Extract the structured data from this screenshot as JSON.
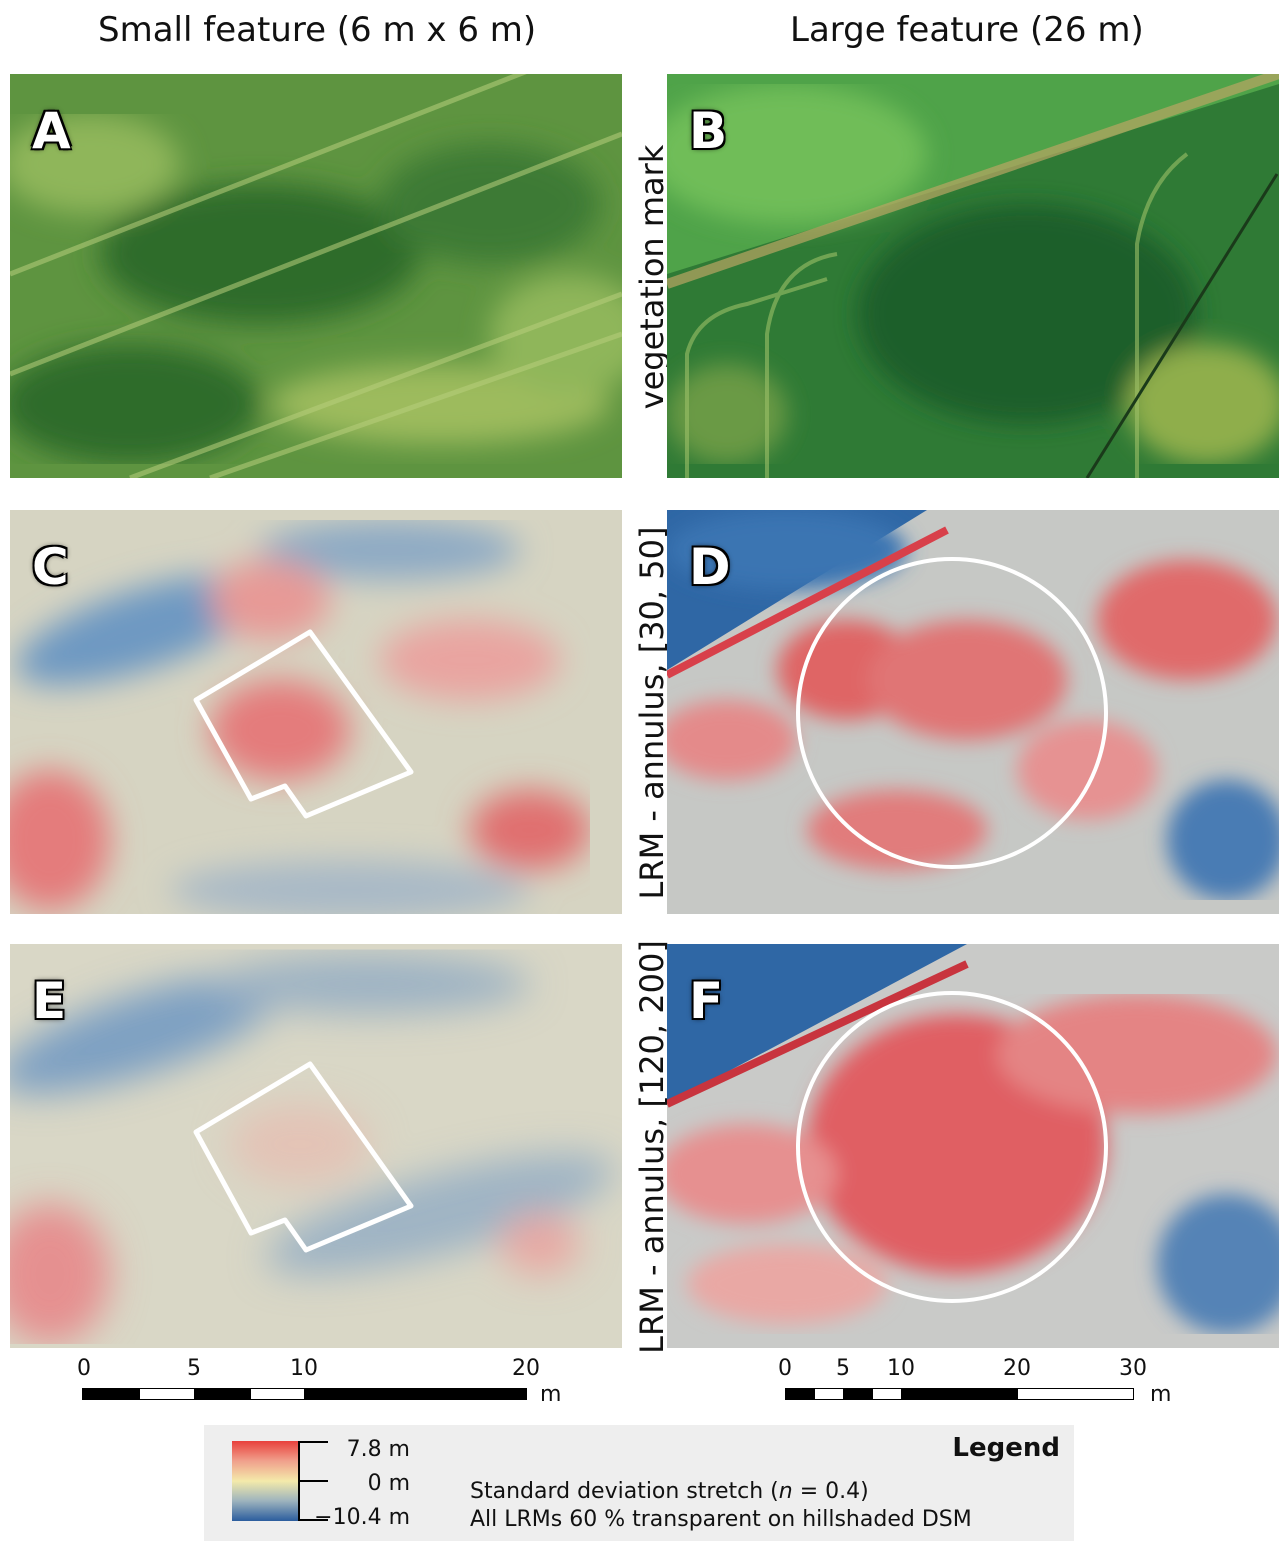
{
  "columns": {
    "left_title": "Small feature (6 m x 6 m)",
    "right_title": "Large feature (26 m)"
  },
  "row_labels": {
    "row1": "vegetation mark",
    "row2": "LRM - annulus, [30, 50]",
    "row3": "LRM - annulus, [120, 200]"
  },
  "panels": [
    {
      "letter": "A",
      "type": "vegetation",
      "colors": [
        "#4f8a36",
        "#79a94b",
        "#2f6c2c"
      ]
    },
    {
      "letter": "B",
      "type": "vegetation",
      "colors": [
        "#2f7a35",
        "#5fa24c",
        "#1f5e2c"
      ]
    },
    {
      "letter": "C",
      "type": "lrm",
      "colors": [
        "#e47b7b",
        "#d9d6c6",
        "#5e8fbd"
      ]
    },
    {
      "letter": "D",
      "type": "lrm",
      "colors": [
        "#e06565",
        "#c8cac7",
        "#2f67a5"
      ]
    },
    {
      "letter": "E",
      "type": "lrm",
      "colors": [
        "#e59090",
        "#dcdac9",
        "#6f95bd"
      ]
    },
    {
      "letter": "F",
      "type": "lrm",
      "colors": [
        "#e05f64",
        "#c9cac8",
        "#2f67a5"
      ]
    }
  ],
  "scalebars": {
    "left": {
      "ticks": [
        "0",
        "5",
        "10",
        "20"
      ],
      "unit": "m"
    },
    "right": {
      "ticks": [
        "0",
        "5",
        "10",
        "20",
        "30"
      ],
      "unit": "m"
    }
  },
  "legend": {
    "title": "Legend",
    "max_label": "7.8 m",
    "mid_label": "0 m",
    "min_label": "−10.4 m",
    "line1": "Standard deviation stretch (n = 0.4)",
    "line2": "All LRMs 60 % transparent on hillshaded DSM",
    "ramp_colors": [
      "#e8403c",
      "#f4eaaa",
      "#2b5d9e"
    ]
  }
}
